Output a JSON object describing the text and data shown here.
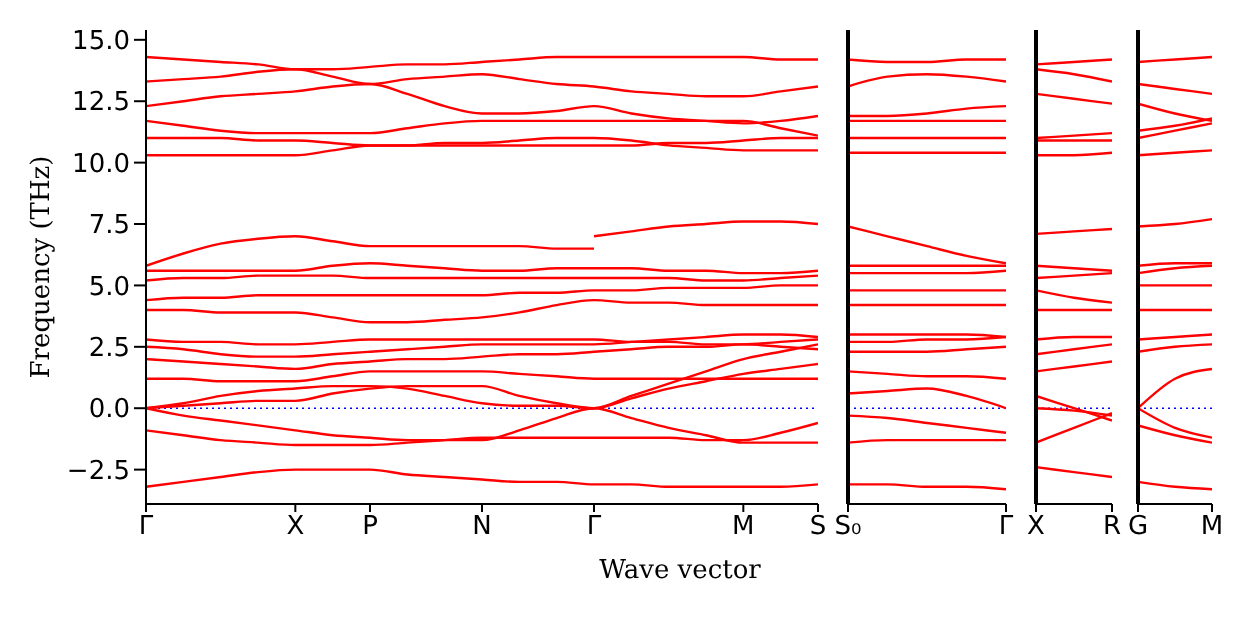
{
  "chart_data": [
    {
      "type": "line",
      "ylabel": "Frequency (THz)",
      "xlabel": "Wave vector",
      "categories": [
        "Γ",
        null,
        null,
        null,
        "X",
        null,
        "P",
        null,
        null,
        "N",
        null,
        null,
        "Γ",
        null,
        null,
        null,
        "M",
        null,
        "S"
      ],
      "ylim": [
        -3.9,
        15.4
      ],
      "yticks": [
        {
          "value": -2.5,
          "label": "−2.5"
        },
        {
          "value": 0,
          "label": "0.0"
        },
        {
          "value": 2.5,
          "label": "2.5"
        },
        {
          "value": 5,
          "label": "5.0"
        },
        {
          "value": 7.5,
          "label": "7.5"
        },
        {
          "value": 10,
          "label": "10.0"
        },
        {
          "value": 12.5,
          "label": "12.5"
        },
        {
          "value": 15,
          "label": "15.0"
        }
      ],
      "ref_lines": [
        {
          "axis": "y",
          "value": 0,
          "color": "#0000ff",
          "line_style": "dotted"
        }
      ],
      "series": [
        {
          "color": "#ff0000",
          "values": [
            14.3,
            14.2,
            14.1,
            14.0,
            13.8,
            13.8,
            13.9,
            14.0,
            14.0,
            14.1,
            14.2,
            14.3,
            14.3,
            14.3,
            14.3,
            14.3,
            14.3,
            14.2,
            14.2
          ]
        },
        {
          "color": "#ff0000",
          "values": [
            13.3,
            13.4,
            13.5,
            13.7,
            13.8,
            13.5,
            13.2,
            13.4,
            13.5,
            13.6,
            13.4,
            13.2,
            13.1,
            12.9,
            12.8,
            12.7,
            12.7,
            12.9,
            13.1
          ]
        },
        {
          "color": "#ff0000",
          "values": [
            12.3,
            12.5,
            12.7,
            12.8,
            12.9,
            13.1,
            13.2,
            12.8,
            12.3,
            12.0,
            12.0,
            12.1,
            12.3,
            12.0,
            11.8,
            11.7,
            11.6,
            11.7,
            11.9
          ]
        },
        {
          "color": "#ff0000",
          "values": [
            11.7,
            11.5,
            11.3,
            11.2,
            11.2,
            11.2,
            11.2,
            11.4,
            11.6,
            11.7,
            11.7,
            11.7,
            11.7,
            11.7,
            11.7,
            11.7,
            11.7,
            11.4,
            11.1
          ]
        },
        {
          "color": "#ff0000",
          "values": [
            11.0,
            11.0,
            11.0,
            10.9,
            10.9,
            10.8,
            10.7,
            10.7,
            10.8,
            10.8,
            10.9,
            11.0,
            11.0,
            10.9,
            10.7,
            10.6,
            10.5,
            10.5,
            10.5
          ]
        },
        {
          "color": "#ff0000",
          "values": [
            10.3,
            10.3,
            10.3,
            10.3,
            10.3,
            10.5,
            10.7,
            10.7,
            10.7,
            10.7,
            10.7,
            10.7,
            10.7,
            10.7,
            10.8,
            10.8,
            10.9,
            11.0,
            11.0
          ]
        },
        {
          "color": "#ff0000",
          "values": [
            5.8,
            6.3,
            6.7,
            6.9,
            7.0,
            6.8,
            6.6,
            6.6,
            6.6,
            6.6,
            6.6,
            6.5,
            6.5,
            null,
            null,
            null,
            null,
            null,
            null
          ]
        },
        {
          "color": "#ff0000",
          "values": [
            null,
            null,
            null,
            null,
            null,
            null,
            null,
            null,
            null,
            null,
            null,
            null,
            7.0,
            7.2,
            7.4,
            7.5,
            7.6,
            7.6,
            7.5
          ]
        },
        {
          "color": "#ff0000",
          "values": [
            5.6,
            5.6,
            5.6,
            5.6,
            5.6,
            5.8,
            5.9,
            5.8,
            5.7,
            5.6,
            5.6,
            5.7,
            5.7,
            5.7,
            5.6,
            5.6,
            5.5,
            5.5,
            5.6
          ]
        },
        {
          "color": "#ff0000",
          "values": [
            5.2,
            5.3,
            5.3,
            5.4,
            5.4,
            5.4,
            5.3,
            5.3,
            5.3,
            5.3,
            5.3,
            5.3,
            5.3,
            5.3,
            5.3,
            5.2,
            5.2,
            5.3,
            5.4
          ]
        },
        {
          "color": "#ff0000",
          "values": [
            4.4,
            4.5,
            4.5,
            4.6,
            4.6,
            4.6,
            4.6,
            4.6,
            4.6,
            4.6,
            4.7,
            4.7,
            4.8,
            4.8,
            4.9,
            4.9,
            4.9,
            5.0,
            5.0
          ]
        },
        {
          "color": "#ff0000",
          "values": [
            4.0,
            4.0,
            3.9,
            3.9,
            3.9,
            3.7,
            3.5,
            3.5,
            3.6,
            3.7,
            3.9,
            4.2,
            4.4,
            4.3,
            4.3,
            4.2,
            4.2,
            4.2,
            4.2
          ]
        },
        {
          "color": "#ff0000",
          "values": [
            2.8,
            2.7,
            2.7,
            2.6,
            2.6,
            2.7,
            2.8,
            2.8,
            2.8,
            2.8,
            2.8,
            2.8,
            2.8,
            2.7,
            2.7,
            2.6,
            2.6,
            2.7,
            2.8
          ]
        },
        {
          "color": "#ff0000",
          "values": [
            2.5,
            2.4,
            2.2,
            2.1,
            2.1,
            2.2,
            2.3,
            2.4,
            2.5,
            2.6,
            2.6,
            2.6,
            2.6,
            2.7,
            2.8,
            2.9,
            3.0,
            3.0,
            2.9
          ]
        },
        {
          "color": "#ff0000",
          "values": [
            2.0,
            1.9,
            1.8,
            1.7,
            1.6,
            1.8,
            1.9,
            2.0,
            2.0,
            2.1,
            2.2,
            2.2,
            2.3,
            2.4,
            2.5,
            2.5,
            2.6,
            2.5,
            2.4
          ]
        },
        {
          "color": "#ff0000",
          "values": [
            1.2,
            1.2,
            1.1,
            1.1,
            1.1,
            1.3,
            1.5,
            1.5,
            1.5,
            1.5,
            1.4,
            1.3,
            1.2,
            1.2,
            1.2,
            1.2,
            1.2,
            1.2,
            1.2
          ]
        },
        {
          "color": "#ff0000",
          "values": [
            0,
            0.1,
            0.2,
            0.3,
            0.3,
            0.6,
            0.8,
            0.9,
            0.9,
            0.9,
            0.5,
            0.2,
            0,
            0.5,
            1.0,
            1.5,
            2.0,
            2.3,
            2.6
          ]
        },
        {
          "color": "#ff0000",
          "values": [
            0,
            0.2,
            0.5,
            0.7,
            0.8,
            0.9,
            0.9,
            0.8,
            0.5,
            0.2,
            0.1,
            0.1,
            0,
            0.4,
            0.8,
            1.1,
            1.4,
            1.6,
            1.8
          ]
        },
        {
          "color": "#ff0000",
          "values": [
            0,
            -0.3,
            -0.5,
            -0.7,
            -0.9,
            -1.1,
            -1.2,
            -1.3,
            -1.3,
            -1.3,
            -0.9,
            -0.4,
            0,
            -0.4,
            -0.8,
            -1.1,
            -1.4,
            -1.4,
            -1.4
          ]
        },
        {
          "color": "#ff0000",
          "values": [
            -0.9,
            -1.1,
            -1.3,
            -1.4,
            -1.5,
            -1.5,
            -1.5,
            -1.4,
            -1.3,
            -1.2,
            -1.2,
            -1.2,
            -1.2,
            -1.2,
            -1.2,
            -1.3,
            -1.3,
            -1.0,
            -0.6
          ]
        },
        {
          "color": "#ff0000",
          "values": [
            -3.2,
            -3.0,
            -2.8,
            -2.6,
            -2.5,
            -2.5,
            -2.5,
            -2.7,
            -2.8,
            -2.9,
            -3.0,
            -3.0,
            -3.1,
            -3.1,
            -3.2,
            -3.2,
            -3.2,
            -3.2,
            -3.1
          ]
        }
      ]
    },
    {
      "type": "line",
      "tick_labels": "x",
      "categories": [
        "S₀",
        null,
        null,
        null,
        "Γ"
      ],
      "ylim": [
        -3.9,
        15.4
      ],
      "ref_lines": [
        {
          "axis": "y",
          "value": 0,
          "color": "#0000ff",
          "line_style": "dotted"
        }
      ],
      "series": [
        {
          "color": "#ff0000",
          "values": [
            14.2,
            14.1,
            14.1,
            14.2,
            14.2
          ]
        },
        {
          "color": "#ff0000",
          "values": [
            13.1,
            13.5,
            13.6,
            13.5,
            13.3
          ]
        },
        {
          "color": "#ff0000",
          "values": [
            11.9,
            11.9,
            12.0,
            12.2,
            12.3
          ]
        },
        {
          "color": "#ff0000",
          "values": [
            11.7,
            11.7,
            11.7,
            11.7,
            11.7
          ]
        },
        {
          "color": "#ff0000",
          "values": [
            11.0,
            11.0,
            11.0,
            11.0,
            11.0
          ]
        },
        {
          "color": "#ff0000",
          "values": [
            10.4,
            10.4,
            10.4,
            10.4,
            10.4
          ]
        },
        {
          "color": "#ff0000",
          "values": [
            7.4,
            7.0,
            6.6,
            6.2,
            5.9
          ]
        },
        {
          "color": "#ff0000",
          "values": [
            5.8,
            5.8,
            5.8,
            5.8,
            5.8
          ]
        },
        {
          "color": "#ff0000",
          "values": [
            5.5,
            5.5,
            5.5,
            5.5,
            5.6
          ]
        },
        {
          "color": "#ff0000",
          "values": [
            4.8,
            4.8,
            4.8,
            4.8,
            4.8
          ]
        },
        {
          "color": "#ff0000",
          "values": [
            4.2,
            4.2,
            4.2,
            4.2,
            4.2
          ]
        },
        {
          "color": "#ff0000",
          "values": [
            3.0,
            3.0,
            3.0,
            3.0,
            2.9
          ]
        },
        {
          "color": "#ff0000",
          "values": [
            2.7,
            2.7,
            2.8,
            2.8,
            2.9
          ]
        },
        {
          "color": "#ff0000",
          "values": [
            2.3,
            2.3,
            2.3,
            2.4,
            2.5
          ]
        },
        {
          "color": "#ff0000",
          "values": [
            1.5,
            1.4,
            1.3,
            1.3,
            1.2
          ]
        },
        {
          "color": "#ff0000",
          "values": [
            0.6,
            0.7,
            0.8,
            0.5,
            0
          ]
        },
        {
          "color": "#ff0000",
          "values": [
            -0.3,
            -0.4,
            -0.6,
            -0.8,
            -1.0
          ]
        },
        {
          "color": "#ff0000",
          "values": [
            -1.4,
            -1.3,
            -1.3,
            -1.3,
            -1.3
          ]
        },
        {
          "color": "#ff0000",
          "values": [
            -3.1,
            -3.1,
            -3.2,
            -3.2,
            -3.3
          ]
        }
      ]
    },
    {
      "type": "line",
      "tick_labels": "x",
      "categories": [
        "X",
        null,
        "R"
      ],
      "ylim": [
        -3.9,
        15.4
      ],
      "ref_lines": [
        {
          "axis": "y",
          "value": 0,
          "color": "#0000ff",
          "line_style": "dotted"
        }
      ],
      "series": [
        {
          "color": "#ff0000",
          "values": [
            14.0,
            14.1,
            14.2
          ]
        },
        {
          "color": "#ff0000",
          "values": [
            13.8,
            13.6,
            13.3
          ]
        },
        {
          "color": "#ff0000",
          "values": [
            12.8,
            12.6,
            12.4
          ]
        },
        {
          "color": "#ff0000",
          "values": [
            11.0,
            11.1,
            11.2
          ]
        },
        {
          "color": "#ff0000",
          "values": [
            10.9,
            10.9,
            10.9
          ]
        },
        {
          "color": "#ff0000",
          "values": [
            10.3,
            10.3,
            10.4
          ]
        },
        {
          "color": "#ff0000",
          "values": [
            7.1,
            7.2,
            7.3
          ]
        },
        {
          "color": "#ff0000",
          "values": [
            5.8,
            5.7,
            5.6
          ]
        },
        {
          "color": "#ff0000",
          "values": [
            5.3,
            5.4,
            5.5
          ]
        },
        {
          "color": "#ff0000",
          "values": [
            4.8,
            4.5,
            4.3
          ]
        },
        {
          "color": "#ff0000",
          "values": [
            4.0,
            4.0,
            4.0
          ]
        },
        {
          "color": "#ff0000",
          "values": [
            2.8,
            2.9,
            2.9
          ]
        },
        {
          "color": "#ff0000",
          "values": [
            2.2,
            2.4,
            2.6
          ]
        },
        {
          "color": "#ff0000",
          "values": [
            1.5,
            1.7,
            1.9
          ]
        },
        {
          "color": "#ff0000",
          "values": [
            0.5,
            0,
            -0.5
          ]
        },
        {
          "color": "#ff0000",
          "values": [
            0,
            -0.1,
            -0.3
          ]
        },
        {
          "color": "#ff0000",
          "values": [
            -1.4,
            -0.8,
            -0.2
          ]
        },
        {
          "color": "#ff0000",
          "values": [
            -2.4,
            -2.6,
            -2.8
          ]
        }
      ]
    },
    {
      "type": "line",
      "tick_labels": "x",
      "categories": [
        "G",
        null,
        "M"
      ],
      "ylim": [
        -3.9,
        15.4
      ],
      "ref_lines": [
        {
          "axis": "y",
          "value": 0,
          "color": "#0000ff",
          "line_style": "dotted"
        }
      ],
      "series": [
        {
          "color": "#ff0000",
          "values": [
            14.1,
            14.2,
            14.3
          ]
        },
        {
          "color": "#ff0000",
          "values": [
            13.2,
            13.0,
            12.8
          ]
        },
        {
          "color": "#ff0000",
          "values": [
            12.4,
            12.0,
            11.7
          ]
        },
        {
          "color": "#ff0000",
          "values": [
            11.3,
            11.5,
            11.8
          ]
        },
        {
          "color": "#ff0000",
          "values": [
            11.0,
            11.3,
            11.6
          ]
        },
        {
          "color": "#ff0000",
          "values": [
            10.3,
            10.4,
            10.5
          ]
        },
        {
          "color": "#ff0000",
          "values": [
            7.4,
            7.5,
            7.7
          ]
        },
        {
          "color": "#ff0000",
          "values": [
            5.8,
            5.9,
            5.9
          ]
        },
        {
          "color": "#ff0000",
          "values": [
            5.5,
            5.7,
            5.8
          ]
        },
        {
          "color": "#ff0000",
          "values": [
            5.0,
            5.0,
            5.0
          ]
        },
        {
          "color": "#ff0000",
          "values": [
            4.0,
            4.0,
            4.0
          ]
        },
        {
          "color": "#ff0000",
          "values": [
            2.8,
            2.9,
            3.0
          ]
        },
        {
          "color": "#ff0000",
          "values": [
            2.3,
            2.5,
            2.6
          ]
        },
        {
          "color": "#ff0000",
          "values": [
            0,
            1.2,
            1.6
          ]
        },
        {
          "color": "#ff0000",
          "values": [
            0,
            -0.8,
            -1.2
          ]
        },
        {
          "color": "#ff0000",
          "values": [
            -0.7,
            -1.1,
            -1.4
          ]
        },
        {
          "color": "#ff0000",
          "values": [
            -3.0,
            -3.2,
            -3.3
          ]
        }
      ]
    }
  ]
}
